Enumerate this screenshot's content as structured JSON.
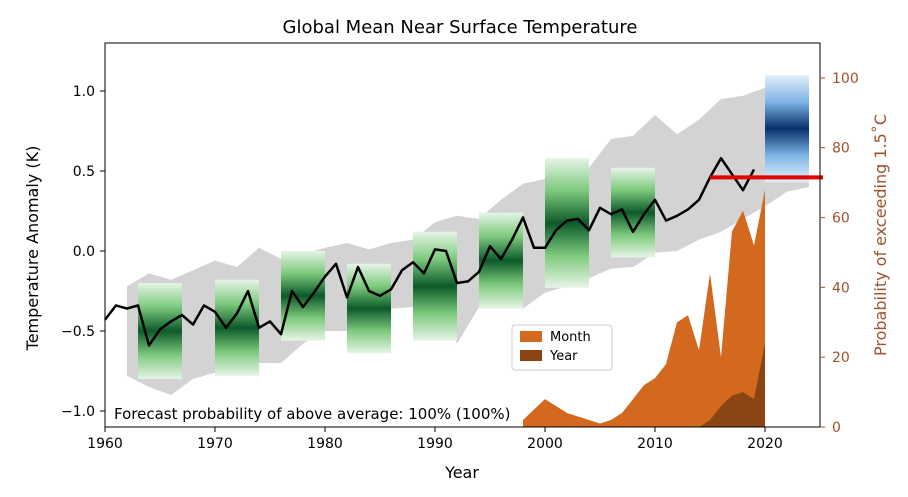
{
  "chart_data": {
    "type": "line",
    "title": "Global Mean Near Surface Temperature",
    "xlabel": "Year",
    "ylabel": "Temperature Anomaly (K)",
    "y2label": "Probability of exceeding 1.5$^\\circ$C",
    "y2label_display": "Probability of exceeding 1.5˚C",
    "xlim": [
      1960,
      2025
    ],
    "ylim": [
      -1.1,
      1.3
    ],
    "y2lim": [
      0,
      110
    ],
    "x_ticks": [
      1960,
      1970,
      1980,
      1990,
      2000,
      2010,
      2020
    ],
    "y_ticks": [
      -1.0,
      -0.5,
      0.0,
      0.5,
      1.0
    ],
    "y2_ticks": [
      0,
      20,
      40,
      60,
      80,
      100
    ],
    "x_tick_labels": [
      "1960",
      "1970",
      "1980",
      "1990",
      "2000",
      "2010",
      "2020"
    ],
    "y_tick_labels": [
      "−1.0",
      "−0.5",
      "0.0",
      "0.5",
      "1.0"
    ],
    "y2_tick_labels": [
      "0",
      "20",
      "40",
      "60",
      "80",
      "100"
    ],
    "annotation": "Forecast probability of above average: 100% (100%)",
    "legend": {
      "placement": "lower-center",
      "entries": [
        {
          "label": "Month",
          "color": "#d2691e"
        },
        {
          "label": "Year",
          "color": "#8b4513"
        }
      ]
    },
    "threshold_line": {
      "x": [
        2015,
        2025
      ],
      "y": 0.46,
      "color": "#e00000"
    },
    "observed": {
      "color": "#000000",
      "x": [
        1960,
        1961,
        1962,
        1963,
        1964,
        1965,
        1966,
        1967,
        1968,
        1969,
        1970,
        1971,
        1972,
        1973,
        1974,
        1975,
        1976,
        1977,
        1978,
        1979,
        1980,
        1981,
        1982,
        1983,
        1984,
        1985,
        1986,
        1987,
        1988,
        1989,
        1990,
        1991,
        1992,
        1993,
        1994,
        1995,
        1996,
        1997,
        1998,
        1999,
        2000,
        2001,
        2002,
        2003,
        2004,
        2005,
        2006,
        2007,
        2008,
        2009,
        2010,
        2011,
        2012,
        2013,
        2014,
        2015,
        2016,
        2017,
        2018,
        2019
      ],
      "y": [
        -0.43,
        -0.34,
        -0.36,
        -0.34,
        -0.59,
        -0.49,
        -0.44,
        -0.4,
        -0.46,
        -0.34,
        -0.38,
        -0.48,
        -0.39,
        -0.25,
        -0.48,
        -0.44,
        -0.52,
        -0.25,
        -0.35,
        -0.26,
        -0.16,
        -0.08,
        -0.29,
        -0.1,
        -0.25,
        -0.28,
        -0.24,
        -0.12,
        -0.07,
        -0.14,
        0.01,
        0.0,
        -0.2,
        -0.19,
        -0.13,
        0.03,
        -0.05,
        0.07,
        0.21,
        0.02,
        0.02,
        0.13,
        0.19,
        0.2,
        0.13,
        0.27,
        0.23,
        0.26,
        0.12,
        0.23,
        0.32,
        0.19,
        0.22,
        0.26,
        0.32,
        0.46,
        0.58,
        0.48,
        0.38,
        0.51
      ]
    },
    "grey_envelope": {
      "color": "#d3d3d3",
      "x": [
        1962,
        1964,
        1966,
        1968,
        1970,
        1972,
        1974,
        1976,
        1978,
        1980,
        1982,
        1984,
        1986,
        1988,
        1990,
        1992,
        1994,
        1996,
        1998,
        2000,
        2002,
        2004,
        2006,
        2008,
        2010,
        2012,
        2014,
        2016,
        2018,
        2020,
        2022,
        2024
      ],
      "upper": [
        -0.22,
        -0.14,
        -0.18,
        -0.12,
        -0.06,
        -0.1,
        0.02,
        -0.05,
        -0.02,
        0.02,
        0.05,
        0.01,
        0.05,
        0.07,
        0.18,
        0.22,
        0.2,
        0.32,
        0.42,
        0.45,
        0.58,
        0.52,
        0.7,
        0.72,
        0.85,
        0.73,
        0.82,
        0.95,
        0.97,
        1.02,
        1.08,
        1.05
      ],
      "lower": [
        -0.78,
        -0.85,
        -0.9,
        -0.8,
        -0.76,
        -0.7,
        -0.7,
        -0.7,
        -0.58,
        -0.5,
        -0.5,
        -0.46,
        -0.36,
        -0.35,
        -0.3,
        -0.58,
        -0.35,
        -0.33,
        -0.36,
        -0.26,
        -0.22,
        -0.17,
        -0.11,
        -0.1,
        -0.01,
        0.0,
        0.07,
        0.12,
        0.2,
        0.28,
        0.37,
        0.4
      ]
    },
    "hindcast_segments": [
      {
        "x": [
          1963,
          1967
        ],
        "y_low": -0.8,
        "y_high": -0.2
      },
      {
        "x": [
          1970,
          1974
        ],
        "y_low": -0.78,
        "y_high": -0.18
      },
      {
        "x": [
          1976,
          1980
        ],
        "y_low": -0.56,
        "y_high": 0.0
      },
      {
        "x": [
          1982,
          1986
        ],
        "y_low": -0.64,
        "y_high": -0.08
      },
      {
        "x": [
          1988,
          1992
        ],
        "y_low": -0.56,
        "y_high": 0.12
      },
      {
        "x": [
          1994,
          1998
        ],
        "y_low": -0.36,
        "y_high": 0.24
      },
      {
        "x": [
          2000,
          2004
        ],
        "y_low": -0.23,
        "y_high": 0.58
      },
      {
        "x": [
          2006,
          2010
        ],
        "y_low": -0.04,
        "y_high": 0.52
      }
    ],
    "forecast": {
      "x": [
        2020,
        2024
      ],
      "y_low": 0.43,
      "y_high": 1.1,
      "color": "#1f5fa8"
    },
    "probability_series": [
      {
        "name": "Month",
        "color": "#d2691e",
        "x": [
          1998,
          1999,
          2000,
          2001,
          2002,
          2003,
          2004,
          2005,
          2006,
          2007,
          2008,
          2009,
          2010,
          2011,
          2012,
          2013,
          2014,
          2015,
          2016,
          2017,
          2018,
          2019,
          2020
        ],
        "values": [
          2,
          5,
          8,
          6,
          4,
          3,
          2,
          1,
          2,
          4,
          8,
          12,
          14,
          18,
          30,
          32,
          22,
          44,
          20,
          56,
          62,
          52,
          68
        ]
      },
      {
        "name": "Year",
        "color": "#8b4513",
        "x": [
          2011,
          2012,
          2013,
          2014,
          2015,
          2016,
          2017,
          2018,
          2019,
          2020
        ],
        "values": [
          0,
          0,
          0,
          0,
          2,
          6,
          9,
          10,
          8,
          24
        ]
      }
    ]
  }
}
